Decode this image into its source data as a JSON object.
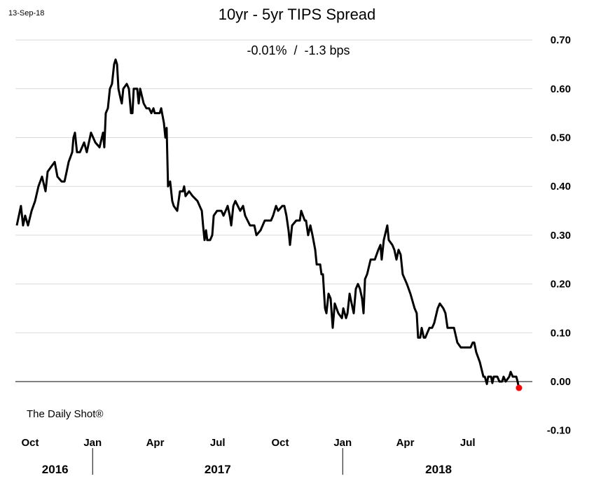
{
  "date_stamp": "13-Sep-18",
  "source": "The Daily Shot®",
  "chart_data": {
    "type": "line",
    "title": "10yr - 5yr TIPS Spread",
    "subtitle": "-0.01%  /  -1.3 bps",
    "xlabel": "",
    "ylabel": "",
    "x_units": "months since Oct 2016",
    "xlim": [
      -0.75,
      24.1
    ],
    "ylim": [
      -0.1,
      0.7
    ],
    "y_ticks": [
      -0.1,
      0.0,
      0.1,
      0.2,
      0.3,
      0.4,
      0.5,
      0.6,
      0.7
    ],
    "y_tick_labels": [
      "-0.10",
      "0.00",
      "0.10",
      "0.20",
      "0.30",
      "0.40",
      "0.50",
      "0.60",
      "0.70"
    ],
    "x_ticks": [
      0,
      3,
      6,
      9,
      12,
      15,
      18,
      21
    ],
    "x_tick_labels": [
      "Oct",
      "Jan",
      "Apr",
      "Jul",
      "Oct",
      "Jan",
      "Apr",
      "Jul"
    ],
    "year_labels": [
      {
        "label": "2016",
        "at": 1.2
      },
      {
        "label": "2017",
        "at": 9
      },
      {
        "label": "2018",
        "at": 19.6
      }
    ],
    "year_dividers": [
      3,
      15
    ],
    "grid": true,
    "line_color": "#000000",
    "last_point_color": "#ff0000",
    "series": [
      {
        "name": "10yr - 5yr TIPS Spread",
        "points": [
          [
            -0.64,
            0.32
          ],
          [
            -0.44,
            0.36
          ],
          [
            -0.34,
            0.32
          ],
          [
            -0.24,
            0.34
          ],
          [
            -0.1,
            0.32
          ],
          [
            0.07,
            0.35
          ],
          [
            0.24,
            0.37
          ],
          [
            0.4,
            0.4
          ],
          [
            0.57,
            0.42
          ],
          [
            0.74,
            0.39
          ],
          [
            0.84,
            0.43
          ],
          [
            1.01,
            0.44
          ],
          [
            1.18,
            0.45
          ],
          [
            1.31,
            0.42
          ],
          [
            1.51,
            0.41
          ],
          [
            1.65,
            0.41
          ],
          [
            1.75,
            0.43
          ],
          [
            1.85,
            0.45
          ],
          [
            2.02,
            0.47
          ],
          [
            2.08,
            0.5
          ],
          [
            2.15,
            0.51
          ],
          [
            2.25,
            0.47
          ],
          [
            2.39,
            0.47
          ],
          [
            2.59,
            0.49
          ],
          [
            2.72,
            0.47
          ],
          [
            2.92,
            0.51
          ],
          [
            3.13,
            0.49
          ],
          [
            3.33,
            0.48
          ],
          [
            3.5,
            0.51
          ],
          [
            3.56,
            0.48
          ],
          [
            3.63,
            0.55
          ],
          [
            3.73,
            0.56
          ],
          [
            3.83,
            0.6
          ],
          [
            3.93,
            0.61
          ],
          [
            4.03,
            0.65
          ],
          [
            4.1,
            0.66
          ],
          [
            4.17,
            0.65
          ],
          [
            4.24,
            0.6
          ],
          [
            4.34,
            0.58
          ],
          [
            4.4,
            0.57
          ],
          [
            4.47,
            0.6
          ],
          [
            4.64,
            0.61
          ],
          [
            4.74,
            0.6
          ],
          [
            4.84,
            0.55
          ],
          [
            4.91,
            0.55
          ],
          [
            4.97,
            0.6
          ],
          [
            5.14,
            0.6
          ],
          [
            5.21,
            0.57
          ],
          [
            5.28,
            0.6
          ],
          [
            5.45,
            0.57
          ],
          [
            5.58,
            0.56
          ],
          [
            5.71,
            0.56
          ],
          [
            5.82,
            0.55
          ],
          [
            5.92,
            0.56
          ],
          [
            5.98,
            0.55
          ],
          [
            6.08,
            0.55
          ],
          [
            6.22,
            0.55
          ],
          [
            6.29,
            0.56
          ],
          [
            6.42,
            0.53
          ],
          [
            6.49,
            0.5
          ],
          [
            6.55,
            0.52
          ],
          [
            6.62,
            0.4
          ],
          [
            6.72,
            0.41
          ],
          [
            6.82,
            0.37
          ],
          [
            6.89,
            0.36
          ],
          [
            7.06,
            0.35
          ],
          [
            7.19,
            0.39
          ],
          [
            7.33,
            0.39
          ],
          [
            7.39,
            0.4
          ],
          [
            7.46,
            0.38
          ],
          [
            7.63,
            0.39
          ],
          [
            7.8,
            0.38
          ],
          [
            8.03,
            0.37
          ],
          [
            8.24,
            0.35
          ],
          [
            8.3,
            0.32
          ],
          [
            8.37,
            0.29
          ],
          [
            8.44,
            0.31
          ],
          [
            8.5,
            0.29
          ],
          [
            8.64,
            0.29
          ],
          [
            8.74,
            0.3
          ],
          [
            8.81,
            0.34
          ],
          [
            8.97,
            0.35
          ],
          [
            9.18,
            0.35
          ],
          [
            9.28,
            0.34
          ],
          [
            9.38,
            0.35
          ],
          [
            9.48,
            0.36
          ],
          [
            9.58,
            0.34
          ],
          [
            9.65,
            0.32
          ],
          [
            9.75,
            0.36
          ],
          [
            9.85,
            0.37
          ],
          [
            10.08,
            0.35
          ],
          [
            10.22,
            0.36
          ],
          [
            10.32,
            0.34
          ],
          [
            10.55,
            0.32
          ],
          [
            10.76,
            0.32
          ],
          [
            10.86,
            0.3
          ],
          [
            11.06,
            0.31
          ],
          [
            11.26,
            0.33
          ],
          [
            11.46,
            0.33
          ],
          [
            11.56,
            0.33
          ],
          [
            11.66,
            0.34
          ],
          [
            11.8,
            0.36
          ],
          [
            11.9,
            0.35
          ],
          [
            12.1,
            0.36
          ],
          [
            12.2,
            0.36
          ],
          [
            12.3,
            0.34
          ],
          [
            12.4,
            0.31
          ],
          [
            12.47,
            0.28
          ],
          [
            12.57,
            0.32
          ],
          [
            12.77,
            0.33
          ],
          [
            12.94,
            0.33
          ],
          [
            13.01,
            0.35
          ],
          [
            13.18,
            0.33
          ],
          [
            13.24,
            0.33
          ],
          [
            13.34,
            0.3
          ],
          [
            13.45,
            0.32
          ],
          [
            13.55,
            0.3
          ],
          [
            13.68,
            0.27
          ],
          [
            13.75,
            0.24
          ],
          [
            13.92,
            0.24
          ],
          [
            13.98,
            0.22
          ],
          [
            14.05,
            0.22
          ],
          [
            14.15,
            0.15
          ],
          [
            14.22,
            0.14
          ],
          [
            14.32,
            0.18
          ],
          [
            14.42,
            0.17
          ],
          [
            14.52,
            0.11
          ],
          [
            14.62,
            0.16
          ],
          [
            14.79,
            0.14
          ],
          [
            14.96,
            0.13
          ],
          [
            15.03,
            0.15
          ],
          [
            15.16,
            0.13
          ],
          [
            15.23,
            0.14
          ],
          [
            15.33,
            0.18
          ],
          [
            15.43,
            0.16
          ],
          [
            15.53,
            0.14
          ],
          [
            15.63,
            0.19
          ],
          [
            15.73,
            0.2
          ],
          [
            15.83,
            0.19
          ],
          [
            15.93,
            0.17
          ],
          [
            16.0,
            0.14
          ],
          [
            16.07,
            0.21
          ],
          [
            16.17,
            0.22
          ],
          [
            16.34,
            0.25
          ],
          [
            16.54,
            0.25
          ],
          [
            16.71,
            0.27
          ],
          [
            16.81,
            0.28
          ],
          [
            16.87,
            0.25
          ],
          [
            16.97,
            0.29
          ],
          [
            17.14,
            0.32
          ],
          [
            17.21,
            0.29
          ],
          [
            17.38,
            0.28
          ],
          [
            17.48,
            0.27
          ],
          [
            17.58,
            0.25
          ],
          [
            17.68,
            0.27
          ],
          [
            17.78,
            0.26
          ],
          [
            17.88,
            0.22
          ],
          [
            18.08,
            0.2
          ],
          [
            18.25,
            0.18
          ],
          [
            18.45,
            0.15
          ],
          [
            18.55,
            0.14
          ],
          [
            18.62,
            0.09
          ],
          [
            18.72,
            0.09
          ],
          [
            18.79,
            0.11
          ],
          [
            18.89,
            0.09
          ],
          [
            18.96,
            0.09
          ],
          [
            19.16,
            0.11
          ],
          [
            19.29,
            0.11
          ],
          [
            19.39,
            0.12
          ],
          [
            19.56,
            0.15
          ],
          [
            19.66,
            0.16
          ],
          [
            19.83,
            0.15
          ],
          [
            19.93,
            0.14
          ],
          [
            20.03,
            0.11
          ],
          [
            20.17,
            0.11
          ],
          [
            20.34,
            0.11
          ],
          [
            20.5,
            0.08
          ],
          [
            20.67,
            0.07
          ],
          [
            20.87,
            0.07
          ],
          [
            21.08,
            0.07
          ],
          [
            21.14,
            0.07
          ],
          [
            21.24,
            0.08
          ],
          [
            21.31,
            0.08
          ],
          [
            21.41,
            0.06
          ],
          [
            21.58,
            0.04
          ],
          [
            21.75,
            0.01
          ],
          [
            21.82,
            0.01
          ],
          [
            21.92,
            -0.005
          ],
          [
            21.98,
            0.01
          ],
          [
            22.12,
            0.01
          ],
          [
            22.18,
            -0.003
          ],
          [
            22.25,
            0.01
          ],
          [
            22.42,
            0.01
          ],
          [
            22.52,
            0.0
          ],
          [
            22.65,
            0.0
          ],
          [
            22.72,
            0.01
          ],
          [
            22.82,
            0.0
          ],
          [
            22.99,
            0.01
          ],
          [
            23.06,
            0.02
          ],
          [
            23.16,
            0.01
          ],
          [
            23.33,
            0.01
          ],
          [
            23.39,
            0.0
          ],
          [
            23.46,
            -0.013
          ]
        ]
      }
    ]
  }
}
